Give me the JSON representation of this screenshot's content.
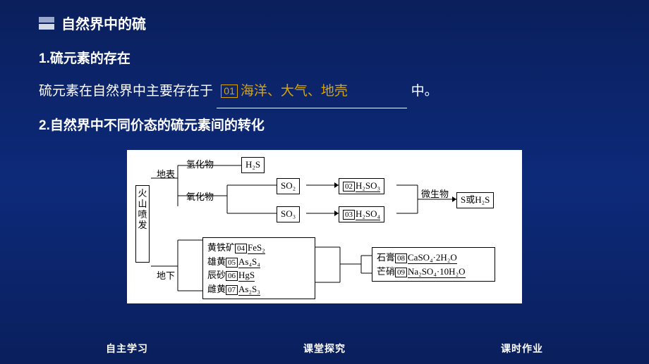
{
  "header": {
    "title": "自然界中的硫"
  },
  "sec1": {
    "heading": "1.硫元素的存在",
    "prefix": "硫元素在自然界中主要存在于",
    "num": "01",
    "answer": "海洋、大气、地壳",
    "suffix": "中。"
  },
  "sec2": {
    "heading": "2.自然界中不同价态的硫元素间的转化"
  },
  "diagram": {
    "source_label": "火山喷发",
    "surface": "地表",
    "underground": "地下",
    "hydride_label": "氢化物",
    "oxide_label": "氧化物",
    "h2s": "H₂S",
    "so2": "SO₂",
    "so3": "SO₃",
    "h2so3_num": "02",
    "h2so3": "H₂SO₃",
    "h2so4_num": "03",
    "h2so4": "H₂SO₄",
    "microbe": "微生物",
    "s_or_h2s": "S或H₂S",
    "pyrite_label": "黄铁矿",
    "pyrite_num": "04",
    "pyrite": "FeS₂",
    "realgar_label": "雄黄",
    "realgar_num": "05",
    "realgar": "As₄S₄",
    "cinnabar_label": "辰砂",
    "cinnabar_num": "06",
    "cinnabar": "HgS",
    "orpiment_label": "雌黄",
    "orpiment_num": "07",
    "orpiment": "As₂S₃",
    "gypsum_label": "石膏",
    "gypsum_num": "08",
    "gypsum": "CaSO₄·2H₂O",
    "mirabilite_label": "芒硝",
    "mirabilite_num": "09",
    "mirabilite": "Na₂SO₄·10H₂O"
  },
  "footer": {
    "nav1": "自主学习",
    "nav2": "课堂探究",
    "nav3": "课时作业"
  },
  "colors": {
    "bg_top": "#0a1f5c",
    "bg_mid": "#0d2a7a",
    "text": "#ffffff",
    "accent": "#d9a400",
    "diagram_bg": "#ffffff",
    "diagram_text": "#000000"
  }
}
